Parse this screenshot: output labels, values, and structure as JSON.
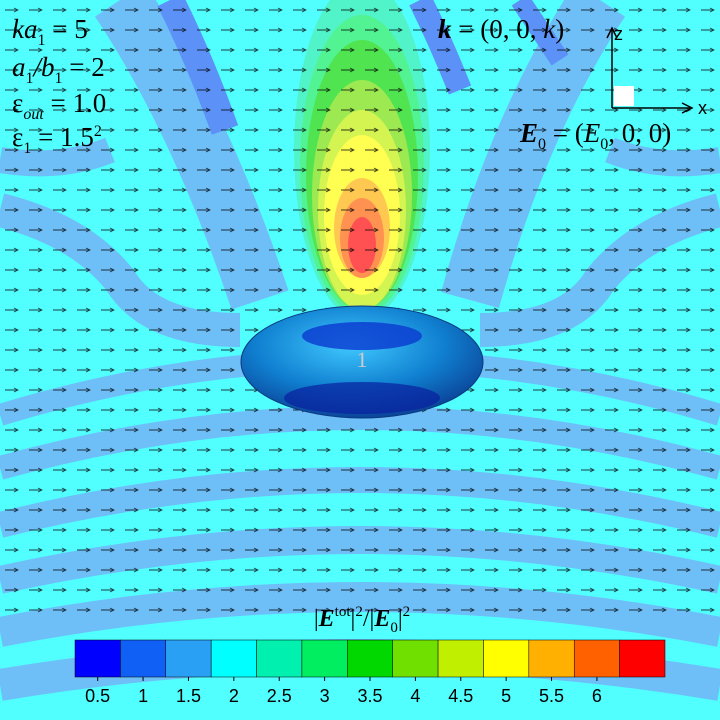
{
  "chart_data": {
    "type": "contour",
    "annotations": [
      [
        "ka",
        "1",
        " = 5"
      ],
      [
        "a",
        "1",
        "/b",
        "1",
        " = 2"
      ],
      [
        "ε",
        "out",
        " = 1.0"
      ],
      [
        "ε",
        "1",
        " = 1.5",
        "2"
      ],
      [
        "k",
        " = (0, 0, ",
        "k",
        ")"
      ],
      [
        "E",
        "0",
        " = (",
        "E",
        "0",
        ", 0, 0)"
      ]
    ],
    "axis_labels": [
      "z",
      "x"
    ],
    "particle_label": "1",
    "colorbar_title": [
      "|",
      "E",
      "tot",
      "|",
      "2",
      "/|",
      "E",
      "0",
      "|",
      "2"
    ],
    "levels": [
      0.5,
      1,
      1.5,
      2,
      2.5,
      3,
      3.5,
      4,
      4.5,
      5,
      5.5,
      6,
      6.5
    ],
    "colors": [
      "#0000ff",
      "#1060f5",
      "#2aa0f5",
      "#00ffff",
      "#00f0b0",
      "#00ee60",
      "#00d800",
      "#70e000",
      "#c0f000",
      "#ffff00",
      "#ffb000",
      "#ff6000",
      "#ff0000"
    ],
    "colorbar_lim": [
      0.25,
      6.75
    ],
    "colorbar_ticks": [
      0.5,
      1,
      1.5,
      2,
      2.5,
      3,
      3.5,
      4,
      4.5,
      5,
      5.5,
      6
    ]
  }
}
